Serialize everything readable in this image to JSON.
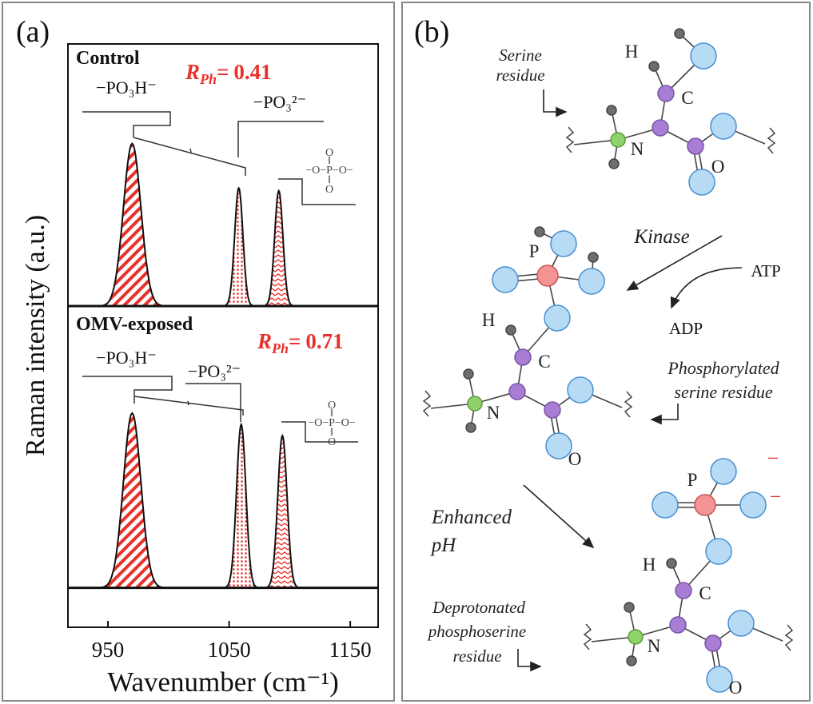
{
  "chart_data": [
    {
      "type": "peak",
      "panel_label": "(a)",
      "sample": "Control",
      "ratio": {
        "symbol": "R",
        "subscript": "Ph",
        "relation": "=",
        "value": 0.41
      },
      "annotations": [
        "−PO₃H⁻",
        "−PO₃²⁻"
      ],
      "structure": [
        "O",
        "‖",
        "−O−P−O−",
        "‖",
        "O"
      ],
      "ylabel": "Raman intensity (a.u.)",
      "color": "#e8312a",
      "xlim": [
        917,
        1173
      ],
      "ylim": [
        0,
        1
      ],
      "peaks": [
        {
          "x": 970,
          "height": 0.62,
          "fwhm": 17,
          "pattern": "stripes"
        },
        {
          "x": 1058,
          "height": 0.45,
          "fwhm": 8,
          "pattern": "dots"
        },
        {
          "x": 1091,
          "height": 0.44,
          "fwhm": 8,
          "pattern": "zigzag"
        }
      ]
    },
    {
      "type": "peak",
      "sample": "OMV-exposed",
      "ratio": {
        "symbol": "R",
        "subscript": "Ph",
        "relation": "=",
        "value": 0.71
      },
      "annotations": [
        "−PO₃H⁻",
        "−PO₃²⁻"
      ],
      "structure": [
        "O",
        "‖",
        "−O−P−O−",
        "‖",
        "O"
      ],
      "xlabel": "Wavenumber (cm⁻¹)",
      "color": "#e8312a",
      "xlim": [
        917,
        1173
      ],
      "ylim": [
        -0.14,
        1
      ],
      "xticks": [
        950,
        1050,
        1150
      ],
      "peaks": [
        {
          "x": 970,
          "height": 0.62,
          "fwhm": 17,
          "pattern": "stripes"
        },
        {
          "x": 1060,
          "height": 0.58,
          "fwhm": 9,
          "pattern": "dots"
        },
        {
          "x": 1094,
          "height": 0.54,
          "fwhm": 9,
          "pattern": "zigzag"
        }
      ]
    }
  ],
  "diagram": {
    "panel_label": "(b)",
    "serine_label": [
      "Serine",
      "residue"
    ],
    "kinase": "Kinase",
    "atp": "ATP",
    "adp": "ADP",
    "phosphorylated_label": [
      "Phosphorylated",
      "serine residue"
    ],
    "condition": [
      "Enhanced",
      "pH"
    ],
    "deprotonated_label": [
      "Deprotonated",
      "phosphoserine",
      "residue"
    ],
    "molecules": [
      {
        "labels": [
          "H",
          "C",
          "N",
          "O"
        ]
      },
      {
        "labels": [
          "P",
          "H",
          "C",
          "N",
          "O"
        ]
      },
      {
        "labels": [
          "P",
          "H",
          "C",
          "N",
          "O"
        ],
        "charges": [
          "−",
          "−"
        ]
      }
    ]
  }
}
